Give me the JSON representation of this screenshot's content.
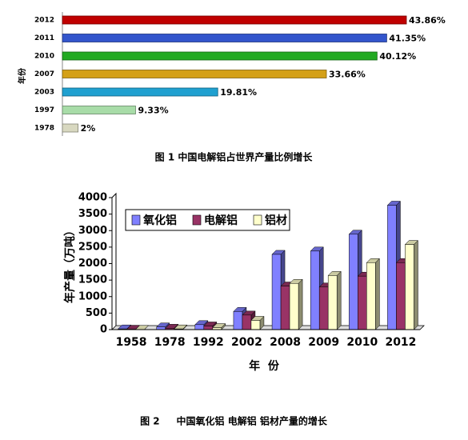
{
  "chart_data": [
    {
      "type": "bar",
      "ylabel": "年份",
      "caption": "图 1   中国电解铝占世界产量比例增长",
      "categories": [
        "2012",
        "2011",
        "2010",
        "2007",
        "2003",
        "1997",
        "1978"
      ],
      "values": [
        43.86,
        41.35,
        40.12,
        33.66,
        19.81,
        9.33,
        2
      ],
      "value_labels": [
        "43.86%",
        "41.35%",
        "40.12%",
        "33.66%",
        "19.81%",
        "9.33%",
        "2%"
      ],
      "colors": [
        "#c00000",
        "#3355cc",
        "#22aa22",
        "#d4a017",
        "#1fa0d0",
        "#a8dca8",
        "#d8d8c0"
      ]
    },
    {
      "type": "bar3d",
      "ylabel": "年产量（万吨）",
      "xlabel": "年  份",
      "caption": "图 2     中国氧化铝 电解铝 铝材产量的增长",
      "legend": "upper-left",
      "categories": [
        "1958",
        "1978",
        "1992",
        "2002",
        "2008",
        "2009",
        "2010",
        "2012"
      ],
      "series": [
        {
          "name": "氧化铝",
          "color": "#8080ff",
          "values": [
            20,
            80,
            150,
            550,
            2280,
            2380,
            2890,
            3770
          ]
        },
        {
          "name": "电解铝",
          "color": "#993366",
          "values": [
            10,
            40,
            110,
            440,
            1320,
            1290,
            1620,
            2030
          ]
        },
        {
          "name": "铝材",
          "color": "#ffffcc",
          "values": [
            5,
            20,
            60,
            280,
            1400,
            1640,
            2030,
            2580
          ]
        }
      ],
      "ylim": [
        0,
        4000
      ],
      "yticks": [
        0,
        500,
        1000,
        1500,
        2000,
        2500,
        3000,
        3500,
        4000
      ]
    }
  ]
}
